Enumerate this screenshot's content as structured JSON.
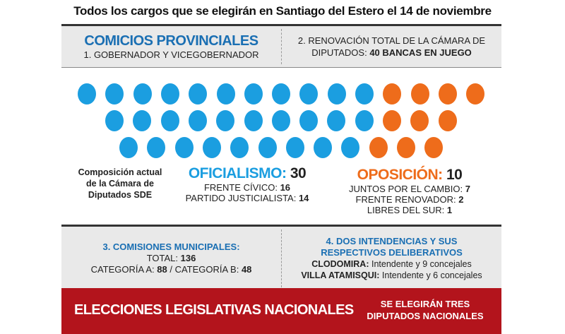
{
  "title": "Todos los cargos que se elegirán en Santiago del Estero el 14 de noviembre",
  "section1": {
    "heading": "COMICIOS PROVINCIALES",
    "item": "1. GOBERNADOR Y VICEGOBERNADOR"
  },
  "section2": {
    "line1": "2. RENOVACIÓN TOTAL DE LA CÁMARA DE",
    "line2_prefix": "DIPUTADOS: ",
    "line2_bold": "40 BANCAS EN JUEGO"
  },
  "seats": {
    "total": 40,
    "oficialismo": 30,
    "oposicion": 10,
    "rows": [
      {
        "blue": 11,
        "orange": 4
      },
      {
        "blue": 10,
        "orange": 3
      },
      {
        "blue": 9,
        "orange": 3
      }
    ],
    "colors": {
      "oficialismo": "#1b9ee0",
      "oposicion": "#ee6c1b"
    }
  },
  "composition_label": [
    "Composición actual",
    "de la Cámara de",
    "Diputados SDE"
  ],
  "oficialismo": {
    "label": "OFICIALISMO:",
    "count": "30",
    "parties": [
      {
        "name": "FRENTE CÍVICO: ",
        "seats": "16"
      },
      {
        "name": "PARTIDO JUSTICIALISTA: ",
        "seats": "14"
      }
    ]
  },
  "oposicion": {
    "label": "OPOSICIÓN:",
    "count": "10",
    "parties": [
      {
        "name": "JUNTOS POR EL CAMBIO: ",
        "seats": "7"
      },
      {
        "name": "FRENTE RENOVADOR: ",
        "seats": "2"
      },
      {
        "name": "LIBRES DEL SUR: ",
        "seats": "1"
      }
    ]
  },
  "section3": {
    "heading": "3. COMISIONES MUNICIPALES:",
    "total_label": "TOTAL: ",
    "total": "136",
    "cat_a_label": "CATEGORÍA A: ",
    "cat_a": "88",
    "separator": " / ",
    "cat_b_label": "CATEGORÍA B: ",
    "cat_b": "48"
  },
  "section4": {
    "heading1": "4. DOS INTENDENCIAS Y SUS",
    "heading2": "RESPECTIVOS DELIBERATIVOS",
    "items": [
      {
        "place": "CLODOMIRA:",
        "detail": " Intendente y 9 concejales"
      },
      {
        "place": "VILLA ATAMISQUI:",
        "detail": " Intendente y 6 concejales"
      }
    ]
  },
  "banner": {
    "title": "ELECCIONES LEGISLATIVAS NACIONALES",
    "sub1": "SE ELEGIRÁN TRES",
    "sub2": "DIPUTADOS NACIONALES"
  }
}
